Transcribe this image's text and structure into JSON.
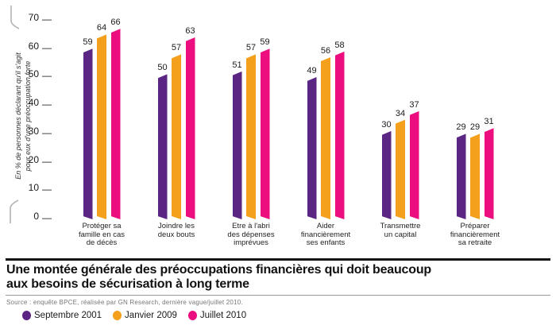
{
  "figure": {
    "title_lines": [
      "Une montée générale des préoccupations financières qui doit beaucoup",
      "aux besoins de sécurisation à long terme"
    ],
    "source": "Source : enquête BPCE, réalisée par GN Research, dernière vague/juillet 2010."
  },
  "chart_data": {
    "type": "bar",
    "title": "Une montée générale des préoccupations financières qui doit beaucoup aux besoins de sécurisation à long terme",
    "ylabel": "En % de personnes déclarant qu'il s'agit pour eux d'une préoccupation forte",
    "ylabel_lines": [
      "En % de personnes déclarant qu'il s'agit",
      "pour eux d'une préoccupation forte"
    ],
    "categories": [
      "Protéger sa famille en cas de décès",
      "Joindre les deux bouts",
      "Etre à l'abri des dépenses imprévues",
      "Aider financièrement ses enfants",
      "Transmettre un capital",
      "Préparer financièrement sa retraite"
    ],
    "categories_lines": [
      [
        "Protéger sa",
        "famille en cas",
        "de décès"
      ],
      [
        "Joindre les",
        "deux bouts"
      ],
      [
        "Etre à l'abri",
        "des dépenses",
        "imprévues"
      ],
      [
        "Aider",
        "financièrement",
        "ses enfants"
      ],
      [
        "Transmettre",
        "un capital"
      ],
      [
        "Préparer",
        "financièrement",
        "sa retraite"
      ]
    ],
    "series": [
      {
        "name": "Septembre 2001",
        "color": "#5A2583",
        "values": [
          59,
          50,
          51,
          49,
          30,
          29
        ]
      },
      {
        "name": "Janvier 2009",
        "color": "#F5A01D",
        "values": [
          64,
          57,
          57,
          56,
          34,
          29
        ]
      },
      {
        "name": "Juillet 2010",
        "color": "#EC0E7E",
        "values": [
          66,
          63,
          59,
          58,
          37,
          31
        ]
      }
    ],
    "yticks": [
      70,
      60,
      50,
      40,
      30,
      20,
      10,
      0
    ],
    "ylim": [
      0,
      70
    ],
    "grid": false,
    "legend_position": "bottom-left",
    "tick_dash": "—"
  }
}
